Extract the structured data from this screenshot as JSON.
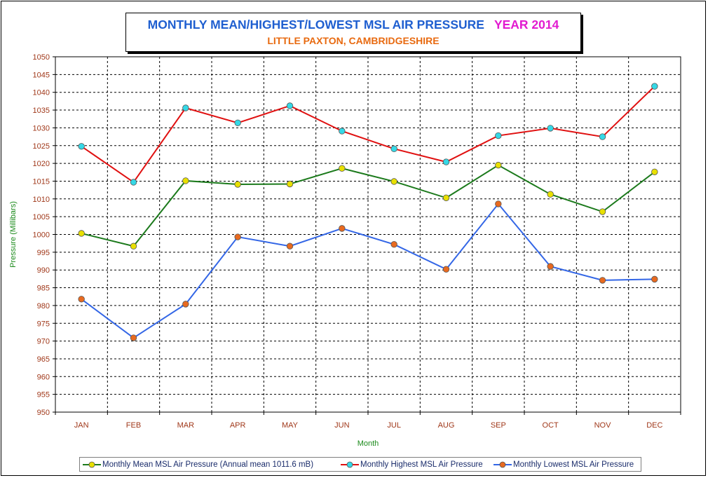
{
  "chart_data": {
    "type": "line",
    "title": "MONTHLY MEAN/HIGHEST/LOWEST MSL AIR PRESSURE",
    "title_year": "YEAR 2014",
    "subtitle": "LITTLE PAXTON, CAMBRIDGESHIRE",
    "xlabel": "Month",
    "ylabel": "Pressure (Millibars)",
    "ylim": [
      950,
      1050
    ],
    "ytick_step": 5,
    "grid": true,
    "legend_position": "bottom",
    "categories": [
      "JAN",
      "FEB",
      "MAR",
      "APR",
      "MAY",
      "JUN",
      "JUL",
      "AUG",
      "SEP",
      "OCT",
      "NOV",
      "DEC"
    ],
    "series": [
      {
        "name": "Monthly Mean MSL Air Pressure (Annual mean 1011.6 mB)",
        "line_color": "#1c7a1c",
        "marker_color": "#e8e000",
        "values": [
          1000.3,
          996.7,
          1015.1,
          1014.1,
          1014.2,
          1018.6,
          1014.9,
          1010.3,
          1019.5,
          1011.3,
          1006.4,
          1017.6
        ]
      },
      {
        "name": "Monthly Highest MSL Air Pressure",
        "line_color": "#e01010",
        "marker_color": "#35d8e6",
        "values": [
          1024.8,
          1014.7,
          1035.6,
          1031.4,
          1036.2,
          1029.1,
          1024.1,
          1020.4,
          1027.8,
          1029.9,
          1027.5,
          1041.7
        ]
      },
      {
        "name": "Monthly Lowest MSL Air Pressure",
        "line_color": "#3366e6",
        "marker_color": "#e86a20",
        "values": [
          981.8,
          970.9,
          980.4,
          999.3,
          996.7,
          1001.7,
          997.2,
          990.2,
          1008.6,
          991.0,
          987.1,
          987.4
        ]
      }
    ]
  }
}
